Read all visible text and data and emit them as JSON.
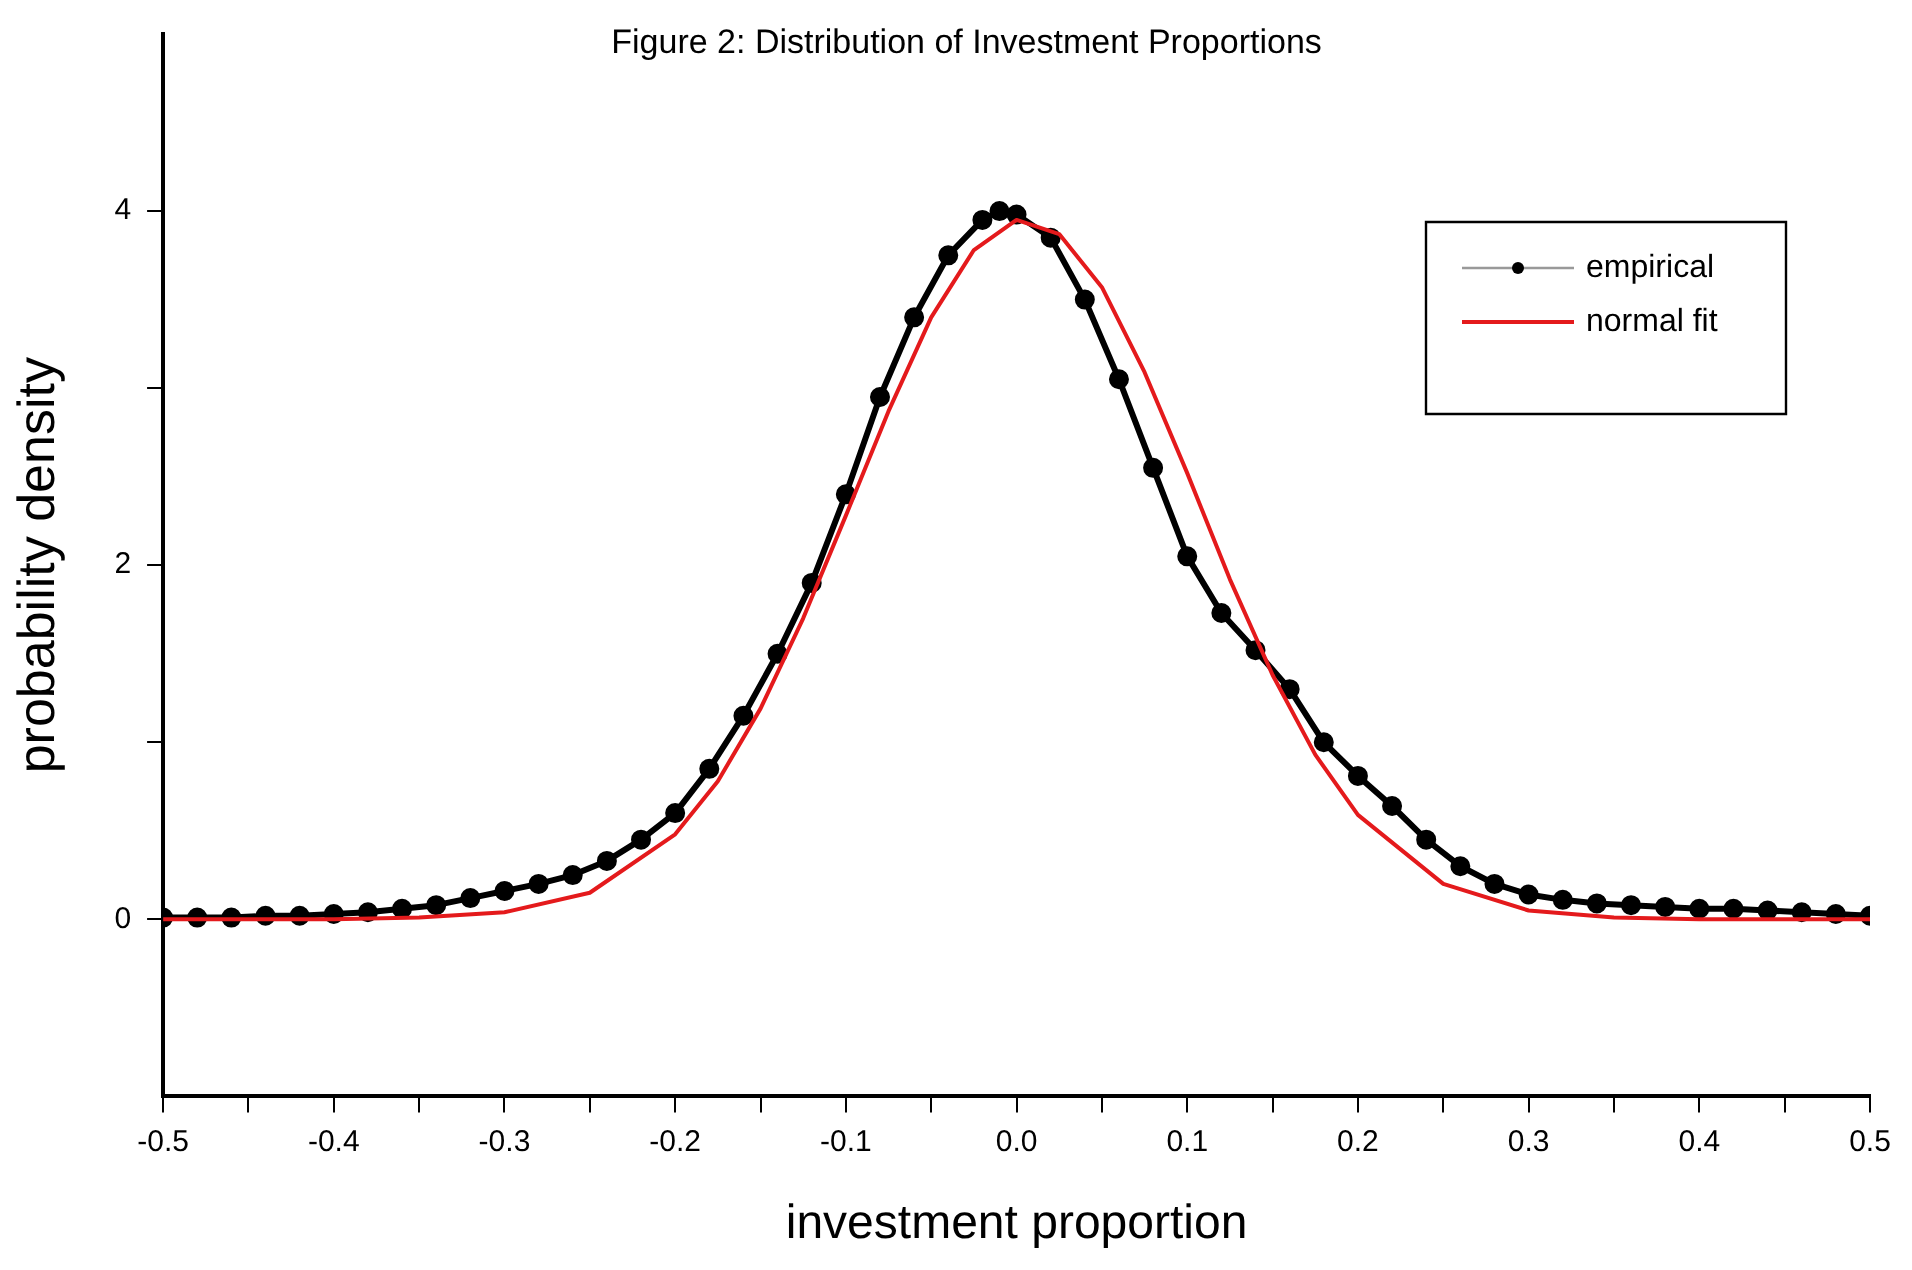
{
  "chart_data": {
    "type": "line",
    "title": "Figure 2: Distribution of Investment Proportions",
    "xlabel": "investment proportion",
    "ylabel": "probability density",
    "xlim": [
      -0.5,
      0.5
    ],
    "xticks": [
      -0.5,
      {
        "value": -0.45,
        "label": null
      },
      -0.4,
      {
        "value": -0.35,
        "label": null
      },
      -0.3,
      {
        "value": -0.25,
        "label": null
      },
      -0.2,
      {
        "value": -0.15,
        "label": null
      },
      -0.1,
      {
        "value": -0.05,
        "label": null
      },
      {
        "value": 0,
        "label": "0.0"
      },
      {
        "value": 0.05,
        "label": null
      },
      0.1,
      {
        "value": 0.15,
        "label": null
      },
      0.2,
      {
        "value": 0.25,
        "label": null
      },
      0.3,
      {
        "value": 0.35,
        "label": null
      },
      0.4,
      {
        "value": 0.45,
        "label": null
      },
      0.5
    ],
    "ylim": [
      -1,
      5
    ],
    "yticks": [
      0,
      {
        "value": 1,
        "label": null
      },
      2,
      {
        "value": 3,
        "label": null
      },
      4
    ],
    "grid": false,
    "legend": "top right",
    "series": [
      {
        "name": "empirical",
        "color": "#000000",
        "marker": "circle",
        "x": [
          -0.5,
          -0.48,
          -0.46,
          -0.44,
          -0.42,
          -0.4,
          -0.38,
          -0.36,
          -0.34,
          -0.32,
          -0.3,
          -0.28,
          -0.26,
          -0.24,
          -0.22,
          -0.2,
          -0.18,
          -0.16,
          -0.14,
          -0.12,
          -0.1,
          -0.08,
          -0.06,
          -0.04,
          -0.02,
          -0.01,
          0,
          0.02,
          0.04,
          0.06,
          0.08,
          0.1,
          0.12,
          0.14,
          0.16,
          0.18,
          0.2,
          0.22,
          0.24,
          0.26,
          0.28,
          0.3,
          0.32,
          0.34,
          0.36,
          0.38,
          0.4,
          0.42,
          0.44,
          0.46,
          0.48,
          0.5
        ],
        "values": [
          0.01,
          0.01,
          0.01,
          0.02,
          0.02,
          0.03,
          0.04,
          0.06,
          0.08,
          0.12,
          0.16,
          0.2,
          0.25,
          0.33,
          0.45,
          0.6,
          0.85,
          1.15,
          1.5,
          1.9,
          2.4,
          2.95,
          3.4,
          3.75,
          3.95,
          4.0,
          3.98,
          3.85,
          3.5,
          3.05,
          2.55,
          2.05,
          1.73,
          1.52,
          1.3,
          1.0,
          0.81,
          0.64,
          0.45,
          0.3,
          0.2,
          0.14,
          0.11,
          0.09,
          0.08,
          0.07,
          0.06,
          0.06,
          0.05,
          0.04,
          0.03,
          0.02
        ]
      },
      {
        "name": "normal fit",
        "color": "#e41a1c",
        "marker": "none",
        "x": [
          -0.5,
          -0.4,
          -0.35,
          -0.3,
          -0.25,
          -0.2,
          -0.175,
          -0.15,
          -0.125,
          -0.1,
          -0.075,
          -0.05,
          -0.025,
          0,
          0.025,
          0.05,
          0.075,
          0.1,
          0.125,
          0.15,
          0.175,
          0.2,
          0.25,
          0.3,
          0.35,
          0.4,
          0.5
        ],
        "values": [
          0,
          0,
          0.01,
          0.04,
          0.15,
          0.48,
          0.78,
          1.19,
          1.7,
          2.28,
          2.87,
          3.4,
          3.78,
          3.95,
          3.87,
          3.57,
          3.09,
          2.52,
          1.92,
          1.38,
          0.93,
          0.59,
          0.2,
          0.05,
          0.01,
          0,
          0
        ]
      }
    ]
  }
}
